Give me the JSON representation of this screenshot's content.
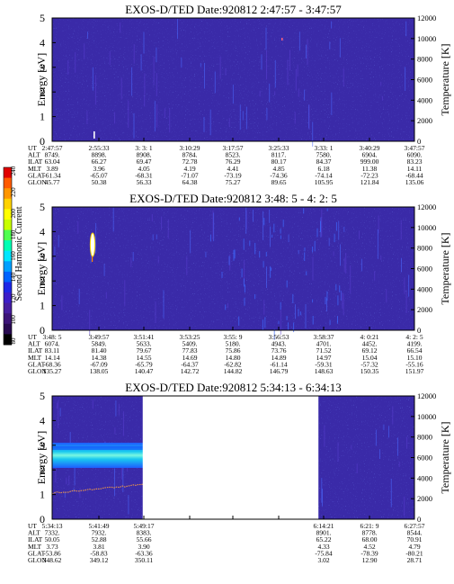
{
  "colorbar": {
    "label": "Second Harmonic Current",
    "ticks": [
      "240",
      "220",
      "200",
      "180",
      "160",
      "140",
      "120",
      "100",
      "80"
    ],
    "colors": [
      "#e00000",
      "#ff5a00",
      "#ff9600",
      "#ffd200",
      "#ffff00",
      "#c8ff00",
      "#50ff50",
      "#00ffb4",
      "#00e6ff",
      "#00a0ff",
      "#0064ff",
      "#1e28e6",
      "#3c1ec8",
      "#461ea0",
      "#3c1478",
      "#280a50",
      "#000000"
    ]
  },
  "chart_data": [
    {
      "type": "heatmap",
      "title": "EXOS-D/TED   Date:920812  2:47:57 - 3:47:57",
      "ylabel": "Energy [eV]",
      "y2label": "Temperature [K]",
      "yticks": [
        "0",
        "1",
        "2",
        "3",
        "4",
        "5"
      ],
      "ylim": [
        0,
        5
      ],
      "y2ticks": [
        "0",
        "2000",
        "4000",
        "6000",
        "8000",
        "10000",
        "12000"
      ],
      "y2lim": [
        0,
        12000
      ],
      "background": "#3a2aa8",
      "gaps": [],
      "table_rows": [
        {
          "label": "UT",
          "values": [
            "2:47:57",
            "2:55:33",
            "3: 3: 1",
            "3:10:29",
            "3:17:57",
            "3:25:33",
            "3:33: 1",
            "3:40:29",
            "3:47:57"
          ]
        },
        {
          "label": "ALT",
          "values": [
            "8749.",
            "8898.",
            "8908.",
            "8784.",
            "8523.",
            "8117.",
            "7580.",
            "6904.",
            "6090."
          ]
        },
        {
          "label": "ILAT",
          "values": [
            "63.04",
            "66.27",
            "69.47",
            "72.78",
            "76.29",
            "80.17",
            "84.37",
            "999.00",
            "83.23"
          ]
        },
        {
          "label": "MLT",
          "values": [
            "3.89",
            "3.96",
            "4.05",
            "4.19",
            "4.41",
            "4.85",
            "6.18",
            "11.38",
            "14.11"
          ]
        },
        {
          "label": "GLAT",
          "values": [
            "-61.34",
            "-65.07",
            "-68.31",
            "-71.07",
            "-73.19",
            "-74.36",
            "-74.14",
            "-72.23",
            "-68.44"
          ]
        },
        {
          "label": "GLON",
          "values": [
            "45.77",
            "50.38",
            "56.33",
            "64.38",
            "75.27",
            "89.65",
            "105.95",
            "121.84",
            "135.06"
          ]
        }
      ]
    },
    {
      "type": "heatmap",
      "title": "EXOS-D/TED   Date:920812  3:48: 5 - 4: 2: 5",
      "ylabel": "Energy [eV]",
      "y2label": "Temperature [K]",
      "yticks": [
        "0",
        "1",
        "2",
        "3",
        "4",
        "5"
      ],
      "ylim": [
        0,
        5
      ],
      "y2ticks": [
        "0",
        "2000",
        "4000",
        "6000",
        "8000",
        "10000",
        "12000"
      ],
      "y2lim": [
        0,
        12000
      ],
      "background": "#3a2aa8",
      "gaps": [],
      "table_rows": [
        {
          "label": "UT",
          "values": [
            "3:48: 5",
            "3:49:57",
            "3:51:41",
            "3:53:25",
            "3:55: 9",
            "3:56:53",
            "3:58:37",
            "4: 0:21",
            "4: 2: 5"
          ]
        },
        {
          "label": "ALT",
          "values": [
            "6074.",
            "5849.",
            "5633.",
            "5409.",
            "5180.",
            "4943.",
            "4701.",
            "4452.",
            "4199."
          ]
        },
        {
          "label": "ILAT",
          "values": [
            "83.11",
            "81.40",
            "79.67",
            "77.83",
            "75.86",
            "73.76",
            "71.52",
            "69.12",
            "66.54"
          ]
        },
        {
          "label": "MLT",
          "values": [
            "14.14",
            "14.38",
            "14.55",
            "14.69",
            "14.80",
            "14.89",
            "14.97",
            "15.04",
            "15.10"
          ]
        },
        {
          "label": "GLAT",
          "values": [
            "-68.36",
            "-67.09",
            "-65.79",
            "-64.37",
            "-62.82",
            "-61.14",
            "-59.31",
            "-57.32",
            "-55.16"
          ]
        },
        {
          "label": "GLON",
          "values": [
            "135.27",
            "138.05",
            "140.47",
            "142.72",
            "144.82",
            "146.79",
            "148.63",
            "150.35",
            "151.97"
          ]
        }
      ]
    },
    {
      "type": "heatmap",
      "title": "EXOS-D/TED   Date:920812  5:34:13 - 6:34:13",
      "ylabel": "Energy [eV]",
      "y2label": "Temperature [K]",
      "yticks": [
        "0",
        "1",
        "2",
        "3",
        "4",
        "5"
      ],
      "ylim": [
        0,
        5
      ],
      "y2ticks": [
        "0",
        "2000",
        "4000",
        "6000",
        "8000",
        "10000",
        "12000"
      ],
      "y2lim": [
        0,
        12000
      ],
      "background": "#3a2aa8",
      "gaps": [
        [
          0.25,
          0.735
        ]
      ],
      "table_rows": [
        {
          "label": "UT",
          "values": [
            "5:34:13",
            "5:41:49",
            "5:49:17",
            "",
            "",
            "",
            "6:14:21",
            "6:21: 9",
            "6:27:57"
          ]
        },
        {
          "label": "ALT",
          "values": [
            "7332.",
            "7932.",
            "8383.",
            "",
            "",
            "",
            "8901.",
            "8778.",
            "8544."
          ]
        },
        {
          "label": "ILAT",
          "values": [
            "50.05",
            "52.88",
            "55.66",
            "",
            "",
            "",
            "65.22",
            "68.00",
            "70.91"
          ]
        },
        {
          "label": "MLT",
          "values": [
            "3.73",
            "3.81",
            "3.90",
            "",
            "",
            "",
            "4.33",
            "4.52",
            "4.79"
          ]
        },
        {
          "label": "GLAT",
          "values": [
            "-53.86",
            "-58.83",
            "-63.36",
            "",
            "",
            "",
            "-75.84",
            "-78.39",
            "-80.21"
          ]
        },
        {
          "label": "GLON",
          "values": [
            "348.62",
            "349.12",
            "350.11",
            "",
            "",
            "",
            "3.02",
            "12.90",
            "28.71"
          ]
        }
      ]
    }
  ]
}
